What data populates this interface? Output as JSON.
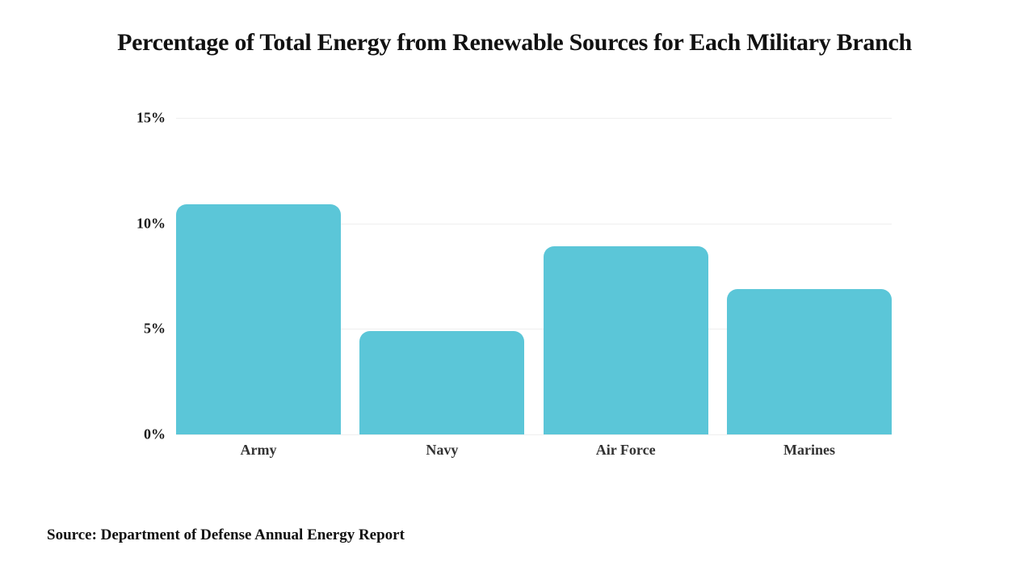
{
  "title": "Percentage of Total Energy from Renewable Sources for Each Military Branch",
  "source_note": "Source: Department of Defense Annual Energy Report",
  "chart_data": {
    "type": "bar",
    "title": "Percentage of Total Energy from Renewable Sources for Each Military Branch",
    "categories": [
      "Army",
      "Navy",
      "Air Force",
      "Marines"
    ],
    "values": [
      10.9,
      4.9,
      8.9,
      6.9
    ],
    "xlabel": "",
    "ylabel": "",
    "ylim": [
      0,
      15
    ],
    "yticks": [
      0,
      5,
      10,
      15
    ],
    "ytick_labels": [
      "0%",
      "5%",
      "10%",
      "15%"
    ],
    "legend": "none",
    "grid": "horizontal",
    "bar_color": "#5BC6D8",
    "grid_color": "#EFEFEF",
    "ytick_color": "#1A1A1A",
    "xtick_color": "#333333",
    "annotation": "Source: Department of Defense Annual Energy Report"
  }
}
